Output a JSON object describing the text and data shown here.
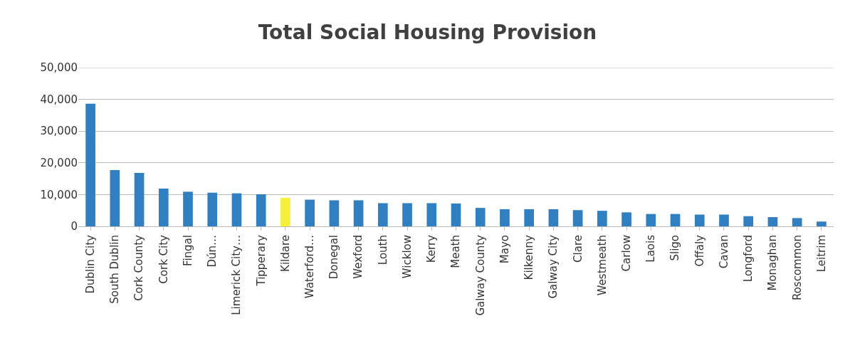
{
  "chart_data": {
    "type": "bar",
    "title": "Total Social Housing Provision",
    "categories": [
      "Dublin City",
      "South Dublin",
      "Cork County",
      "Cork City",
      "Fingal",
      "Dún…",
      "Limerick City…",
      "Tipperary",
      "Kildare",
      "Waterford…",
      "Donegal",
      "Wexford",
      "Louth",
      "Wicklow",
      "Kerry",
      "Meath",
      "Galway County",
      "Mayo",
      "Kilkenny",
      "Galway City",
      "Clare",
      "Westmeath",
      "Carlow",
      "Laois",
      "Sligo",
      "Offaly",
      "Cavan",
      "Longford",
      "Monaghan",
      "Roscommon",
      "Leitrim"
    ],
    "values": [
      38600,
      17700,
      16800,
      11900,
      10900,
      10600,
      10400,
      10100,
      9000,
      8400,
      8200,
      8200,
      7300,
      7300,
      7300,
      7200,
      5800,
      5400,
      5400,
      5400,
      5100,
      4900,
      4400,
      3900,
      3900,
      3700,
      3700,
      3200,
      2900,
      2600,
      1500
    ],
    "colors": [
      "#2f7fc1",
      "#2f7fc1",
      "#2f7fc1",
      "#2f7fc1",
      "#2f7fc1",
      "#2f7fc1",
      "#2f7fc1",
      "#2f7fc1",
      "#f4f03c",
      "#2f7fc1",
      "#2f7fc1",
      "#2f7fc1",
      "#2f7fc1",
      "#2f7fc1",
      "#2f7fc1",
      "#2f7fc1",
      "#2f7fc1",
      "#2f7fc1",
      "#2f7fc1",
      "#2f7fc1",
      "#2f7fc1",
      "#2f7fc1",
      "#2f7fc1",
      "#2f7fc1",
      "#2f7fc1",
      "#2f7fc1",
      "#2f7fc1",
      "#2f7fc1",
      "#2f7fc1",
      "#2f7fc1",
      "#2f7fc1"
    ],
    "ylim": [
      0,
      50000
    ],
    "yticks": [
      {
        "value": 0,
        "label": "0"
      },
      {
        "value": 10000,
        "label": "10,000"
      },
      {
        "value": 20000,
        "label": "20,000"
      },
      {
        "value": 30000,
        "label": "30,000"
      },
      {
        "value": 40000,
        "label": "40,000"
      },
      {
        "value": 50000,
        "label": "50,000"
      }
    ],
    "grid": "y"
  }
}
